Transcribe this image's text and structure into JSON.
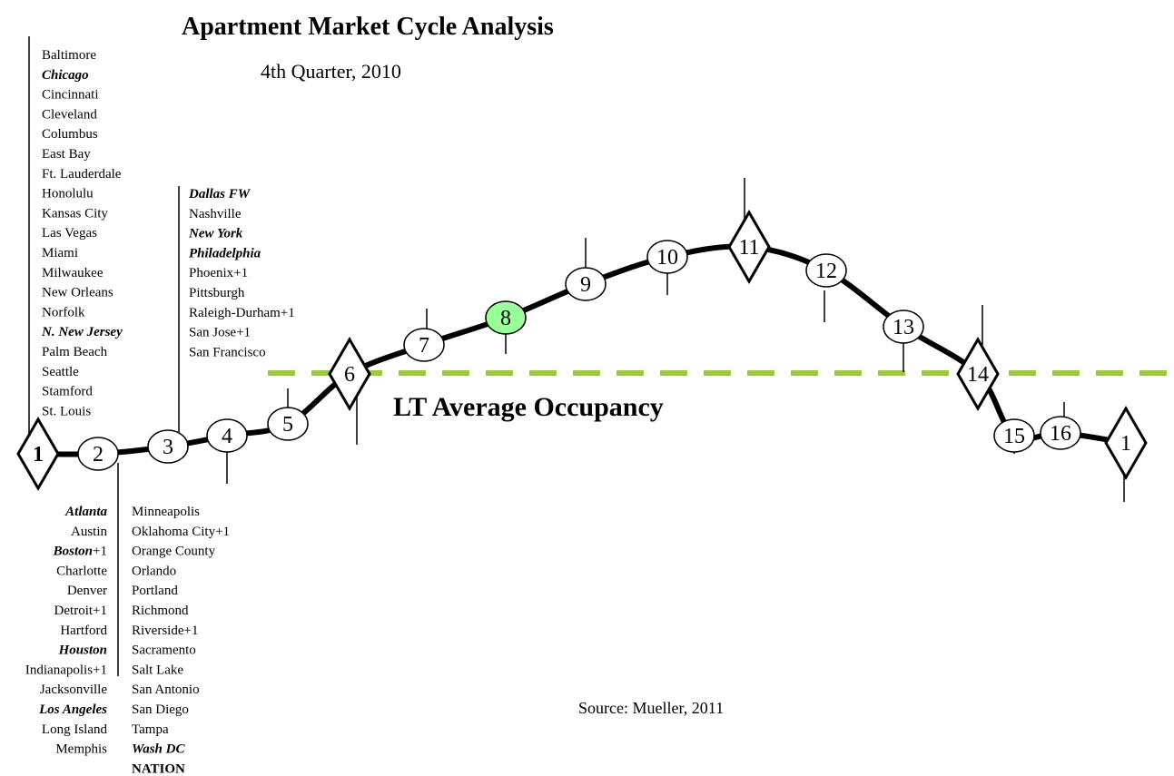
{
  "title": "Apartment Market Cycle Analysis",
  "subtitle": "4th Quarter, 2010",
  "source": "Source: Mueller, 2011",
  "line_label": "LT Average Occupancy",
  "nodes": [
    {
      "label": "1",
      "shape": "diamond"
    },
    {
      "label": "2",
      "shape": "ellipse"
    },
    {
      "label": "3",
      "shape": "ellipse"
    },
    {
      "label": "4",
      "shape": "ellipse"
    },
    {
      "label": "5",
      "shape": "ellipse"
    },
    {
      "label": "6",
      "shape": "diamond"
    },
    {
      "label": "7",
      "shape": "ellipse"
    },
    {
      "label": "8",
      "shape": "ellipse",
      "color": "#99ff99"
    },
    {
      "label": "9",
      "shape": "ellipse"
    },
    {
      "label": "10",
      "shape": "ellipse"
    },
    {
      "label": "11",
      "shape": "diamond"
    },
    {
      "label": "12",
      "shape": "ellipse"
    },
    {
      "label": "13",
      "shape": "ellipse"
    },
    {
      "label": "14",
      "shape": "diamond"
    },
    {
      "label": "15",
      "shape": "ellipse"
    },
    {
      "label": "16",
      "shape": "ellipse"
    },
    {
      "label": "1",
      "shape": "diamond"
    }
  ],
  "lists": [
    {
      "node": "1",
      "items": [
        {
          "name": "Baltimore"
        },
        {
          "name": "Chicago",
          "em": true
        },
        {
          "name": "Cincinnati"
        },
        {
          "name": "Cleveland"
        },
        {
          "name": "Columbus"
        },
        {
          "name": "East Bay"
        },
        {
          "name": "Ft. Lauderdale"
        },
        {
          "name": "Honolulu"
        },
        {
          "name": "Kansas City"
        },
        {
          "name": "Las Vegas"
        },
        {
          "name": "Miami"
        },
        {
          "name": "Milwaukee"
        },
        {
          "name": "New Orleans"
        },
        {
          "name": "Norfolk"
        },
        {
          "name": "N. New Jersey",
          "em": true
        },
        {
          "name": "Palm Beach"
        },
        {
          "name": "Seattle"
        },
        {
          "name": "Stamford"
        },
        {
          "name": "St. Louis"
        }
      ]
    },
    {
      "node": "3",
      "items": [
        {
          "name": "Dallas FW",
          "em": true
        },
        {
          "name": "Nashville"
        },
        {
          "name": "New York",
          "em": true
        },
        {
          "name": "Philadelphia",
          "em": true
        },
        {
          "name": "Phoenix+1"
        },
        {
          "name": "Pittsburgh"
        },
        {
          "name": "Raleigh-Durham+1"
        },
        {
          "name": "San Jose+1"
        },
        {
          "name": "San Francisco"
        }
      ]
    },
    {
      "node": "2",
      "items": [
        {
          "name": "Atlanta",
          "em": true
        },
        {
          "name": "Austin"
        },
        {
          "name": "Boston",
          "suffix": "+1",
          "em": true
        },
        {
          "name": "Charlotte"
        },
        {
          "name": "Denver"
        },
        {
          "name": "Detroit+1"
        },
        {
          "name": "Hartford"
        },
        {
          "name": "Houston",
          "em": true
        },
        {
          "name": "Indianapolis+1"
        },
        {
          "name": "Jacksonville"
        },
        {
          "name": "Los Angeles",
          "em": true
        },
        {
          "name": "Long Island"
        },
        {
          "name": "Memphis"
        }
      ]
    },
    {
      "node": "2",
      "items": [
        {
          "name": "Minneapolis"
        },
        {
          "name": "Oklahoma City+1"
        },
        {
          "name": "Orange County"
        },
        {
          "name": "Orlando"
        },
        {
          "name": "Portland"
        },
        {
          "name": "Richmond"
        },
        {
          "name": "Riverside+1"
        },
        {
          "name": "Sacramento"
        },
        {
          "name": "Salt Lake"
        },
        {
          "name": "San Antonio"
        },
        {
          "name": "San Diego"
        },
        {
          "name": "Tampa"
        },
        {
          "name": "Wash DC",
          "em": true
        },
        {
          "name": "NATION",
          "bold": true
        }
      ]
    }
  ]
}
